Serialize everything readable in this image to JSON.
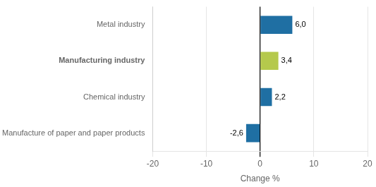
{
  "chart_data": {
    "type": "bar",
    "orientation": "horizontal",
    "categories": [
      "Manufacture of paper and paper products",
      "Chemical industry",
      "Manufacturing industry",
      "Metal industry"
    ],
    "values": [
      -2.6,
      2.2,
      3.4,
      6.0
    ],
    "value_labels": [
      "-2,6",
      "2,2",
      "3,4",
      "6,0"
    ],
    "data_labels": true,
    "colors": [
      "#1f6fa3",
      "#1f6fa3",
      "#b5c94c",
      "#1f6fa3"
    ],
    "xlabel": "Change %",
    "xlim": [
      -20,
      20
    ],
    "xticks": [
      -20,
      -10,
      0,
      10,
      20
    ],
    "grid": true
  }
}
